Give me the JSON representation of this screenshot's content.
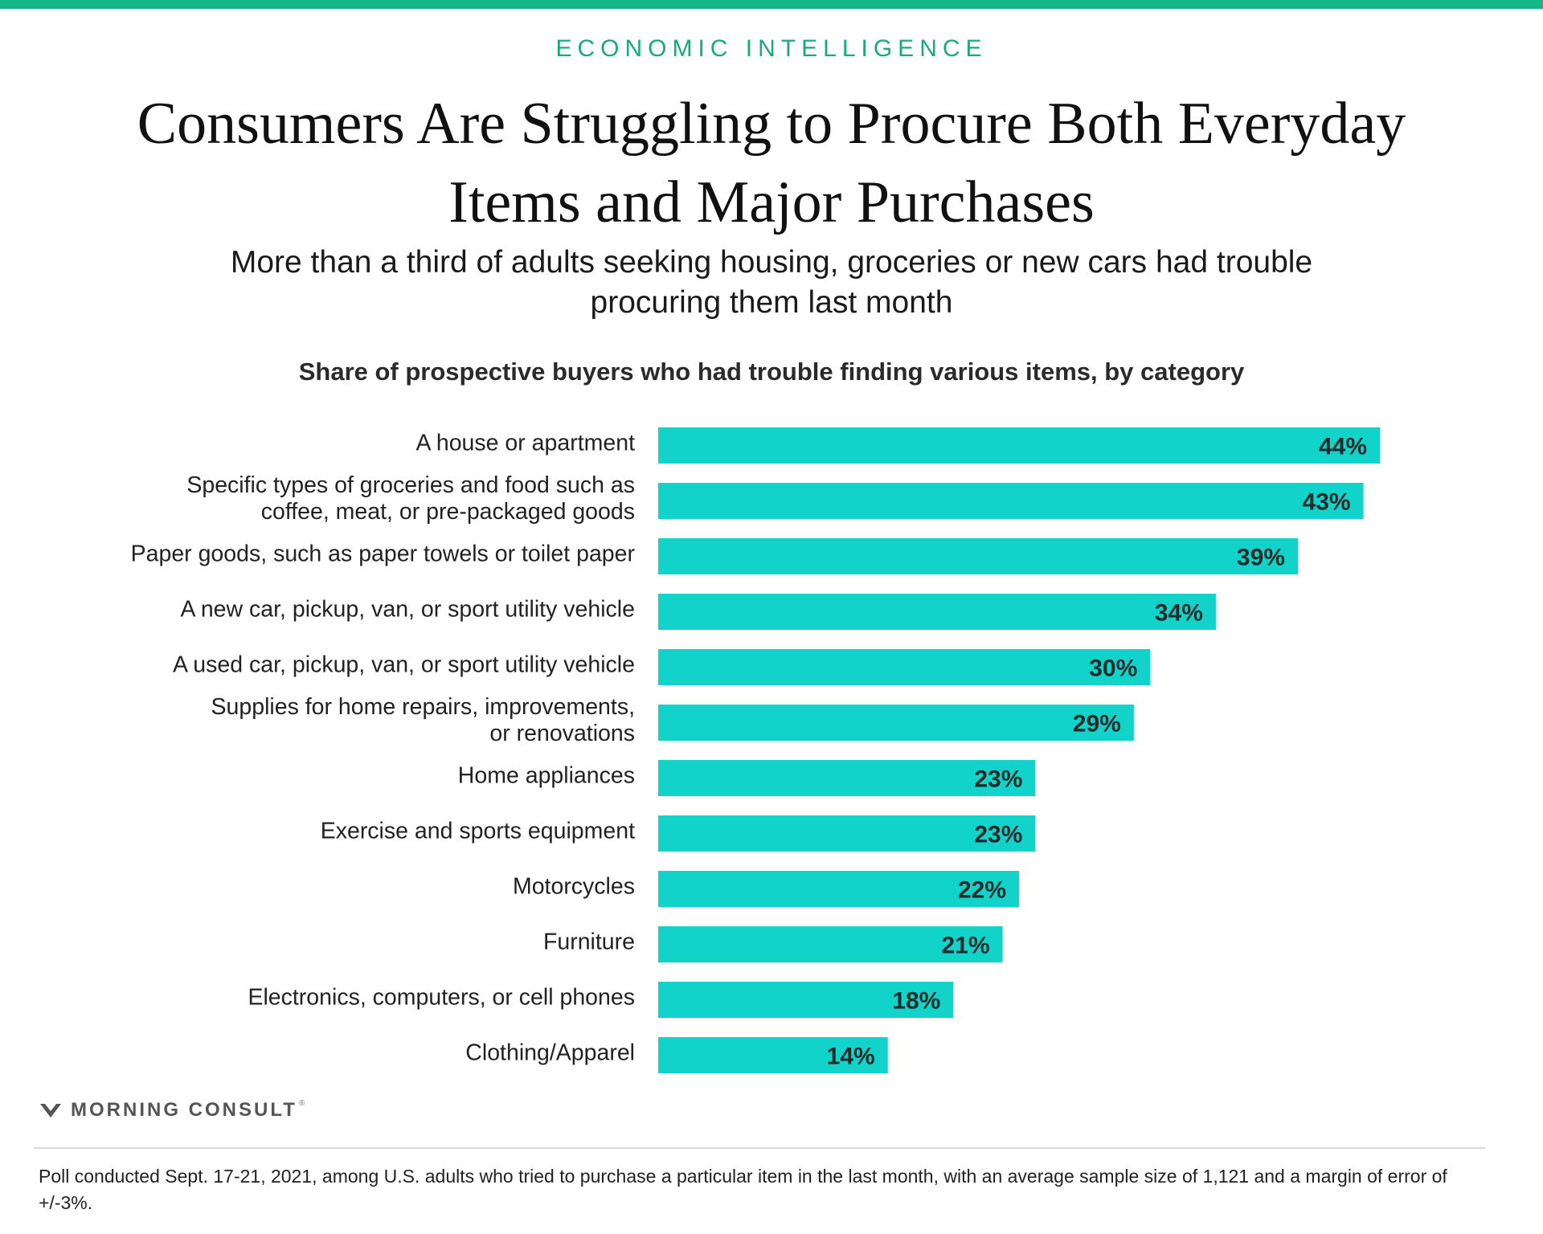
{
  "header": {
    "kicker": "ECONOMIC INTELLIGENCE",
    "title": "Consumers Are Struggling to Procure Both Everyday Items and Major Purchases",
    "subtitle": "More than a third of adults seeking housing, groceries or new cars had trouble procuring them last month"
  },
  "colors": {
    "accent": "#12b886",
    "bar": "#12d3c9"
  },
  "chart_data": {
    "type": "bar",
    "orientation": "horizontal",
    "title": "Share of prospective buyers who had trouble finding various items, by category",
    "xlabel": "",
    "ylabel": "",
    "xlim": [
      0,
      44
    ],
    "unit": "%",
    "categories": [
      [
        "A house or apartment"
      ],
      [
        "Specific types of groceries and food such as",
        "coffee, meat, or pre-packaged goods"
      ],
      [
        "Paper goods, such as paper towels or toilet paper"
      ],
      [
        "A new car, pickup, van, or sport utility vehicle"
      ],
      [
        "A used car, pickup, van, or sport utility vehicle"
      ],
      [
        "Supplies for home repairs, improvements,",
        "or renovations"
      ],
      [
        "Home appliances"
      ],
      [
        "Exercise and sports equipment"
      ],
      [
        "Motorcycles"
      ],
      [
        "Furniture"
      ],
      [
        "Electronics, computers, or cell phones"
      ],
      [
        "Clothing/Apparel"
      ]
    ],
    "values": [
      44,
      43,
      39,
      34,
      30,
      29,
      23,
      23,
      22,
      21,
      18,
      14
    ],
    "value_labels": [
      "44%",
      "43%",
      "39%",
      "34%",
      "30%",
      "29%",
      "23%",
      "23%",
      "22%",
      "21%",
      "18%",
      "14%"
    ]
  },
  "brand": {
    "logo_icon": "morning-consult-m-icon",
    "name": "MORNING CONSULT",
    "mark": "®"
  },
  "footnote": "Poll conducted Sept. 17-21, 2021, among U.S. adults who tried to purchase a particular item in the last month, with an average sample size of 1,121 and a margin of error of +/-3%."
}
